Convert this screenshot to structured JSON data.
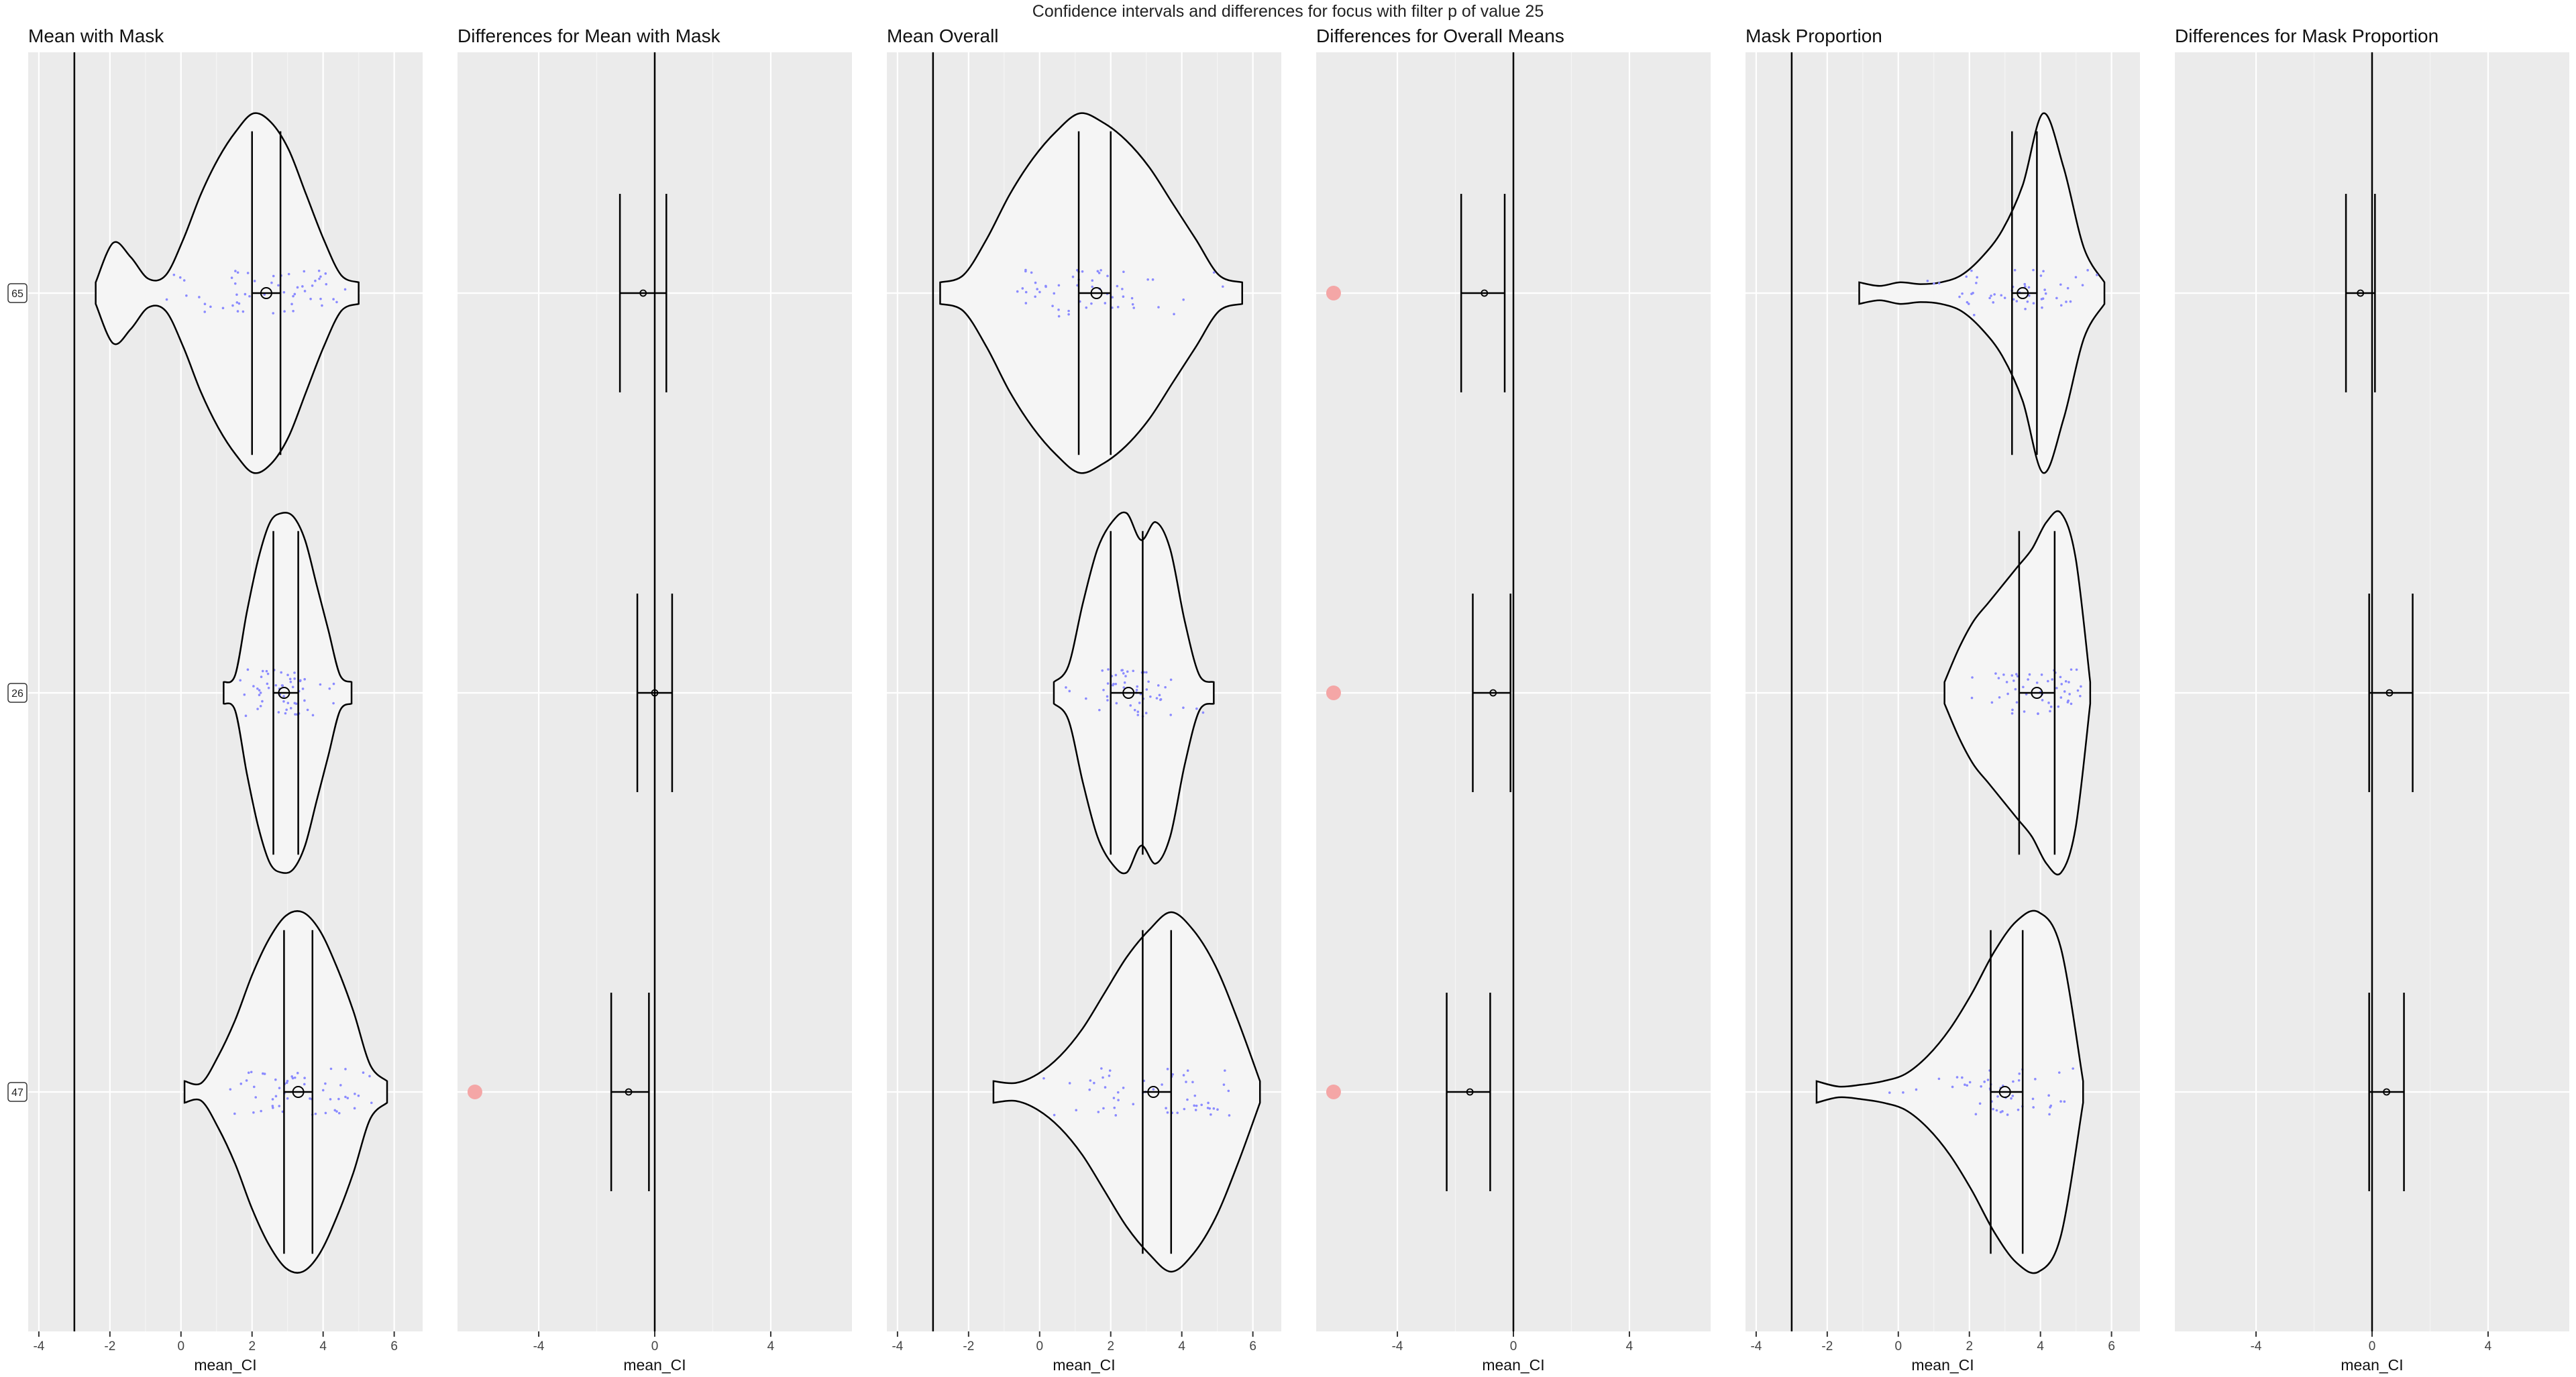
{
  "title": "Confidence intervals and differences for focus with filter p of value 25",
  "colors": {
    "panel_bg": "#ebebeb",
    "grid_major": "#ffffff",
    "violin_fill": "#f5f5f5",
    "line": "#000000",
    "jitter_points": "#8a8aff",
    "flag_point": "#f4a6a6"
  },
  "chart_data": [
    {
      "type": "violin",
      "title": "Mean with Mask",
      "xlabel": "mean_CI",
      "xlim": [
        -4.3,
        6.8
      ],
      "xticks": [
        -4,
        -2,
        0,
        2,
        4,
        6
      ],
      "reference_line": -3,
      "categories": [
        "65",
        "26",
        "47"
      ],
      "show_row_labels": true,
      "violins": [
        {
          "category": "65",
          "min": -2.4,
          "max": 5.0,
          "mean": 2.4,
          "ci": [
            2.0,
            2.8
          ],
          "profile": [
            0.28,
            0.2,
            0.08,
            0.1,
            0.3,
            0.55,
            0.75,
            0.9,
            1.0,
            0.95,
            0.8,
            0.55,
            0.3,
            0.1
          ]
        },
        {
          "category": "26",
          "min": 1.2,
          "max": 4.8,
          "mean": 2.9,
          "ci": [
            2.6,
            3.3
          ],
          "profile": [
            0.1,
            0.45,
            0.75,
            0.95,
            1.0,
            0.98,
            0.85,
            0.6,
            0.35,
            0.1
          ]
        },
        {
          "category": "47",
          "min": 0.1,
          "max": 5.8,
          "mean": 3.3,
          "ci": [
            2.9,
            3.7
          ],
          "profile": [
            0.05,
            0.2,
            0.4,
            0.65,
            0.85,
            0.98,
            1.0,
            0.9,
            0.7,
            0.45,
            0.15
          ]
        }
      ],
      "flag_points": []
    },
    {
      "type": "errorbar",
      "title": "Differences for Mean with Mask",
      "xlabel": "mean_CI",
      "xlim": [
        -6.8,
        6.8
      ],
      "xticks": [
        -4,
        0,
        4
      ],
      "reference_line": 0,
      "categories": [
        "65",
        "26",
        "47"
      ],
      "show_row_labels": false,
      "intervals": [
        {
          "category": "65",
          "center": -0.4,
          "lo": -1.2,
          "hi": 0.4
        },
        {
          "category": "26",
          "center": 0.0,
          "lo": -0.6,
          "hi": 0.6
        },
        {
          "category": "47",
          "center": -0.9,
          "lo": -1.5,
          "hi": -0.2
        }
      ],
      "flag_points": [
        {
          "category": "47",
          "x": -6.2
        }
      ]
    },
    {
      "type": "violin",
      "title": "Mean Overall",
      "xlabel": "mean_CI",
      "xlim": [
        -4.3,
        6.8
      ],
      "xticks": [
        -4,
        -2,
        0,
        2,
        4,
        6
      ],
      "reference_line": -3,
      "categories": [
        "65",
        "26",
        "47"
      ],
      "show_row_labels": false,
      "violins": [
        {
          "category": "65",
          "min": -2.8,
          "max": 5.7,
          "mean": 1.6,
          "ci": [
            1.1,
            2.0
          ],
          "profile": [
            0.1,
            0.3,
            0.55,
            0.75,
            0.9,
            1.0,
            0.95,
            0.85,
            0.7,
            0.5,
            0.3,
            0.1
          ]
        },
        {
          "category": "26",
          "min": 0.4,
          "max": 4.9,
          "mean": 2.5,
          "ci": [
            2.0,
            2.9
          ],
          "profile": [
            0.15,
            0.5,
            0.8,
            0.95,
            1.0,
            0.85,
            0.95,
            0.8,
            0.4,
            0.1
          ]
        },
        {
          "category": "47",
          "min": -1.3,
          "max": 6.2,
          "mean": 3.2,
          "ci": [
            2.9,
            3.7
          ],
          "profile": [
            0.05,
            0.1,
            0.2,
            0.35,
            0.55,
            0.75,
            0.9,
            1.0,
            0.9,
            0.7,
            0.4
          ]
        }
      ],
      "flag_points": []
    },
    {
      "type": "errorbar",
      "title": "Differences for Overall Means",
      "xlabel": "mean_CI",
      "xlim": [
        -6.8,
        6.8
      ],
      "xticks": [
        -4,
        0,
        4
      ],
      "reference_line": 0,
      "categories": [
        "65",
        "26",
        "47"
      ],
      "show_row_labels": false,
      "intervals": [
        {
          "category": "65",
          "center": -1.0,
          "lo": -1.8,
          "hi": -0.3
        },
        {
          "category": "26",
          "center": -0.7,
          "lo": -1.4,
          "hi": -0.1
        },
        {
          "category": "47",
          "center": -1.5,
          "lo": -2.3,
          "hi": -0.8
        }
      ],
      "flag_points": [
        {
          "category": "65",
          "x": -6.2
        },
        {
          "category": "26",
          "x": -6.2
        },
        {
          "category": "47",
          "x": -6.2
        }
      ]
    },
    {
      "type": "violin",
      "title": "Mask Proportion",
      "xlabel": "mean_CI",
      "xlim": [
        -4.3,
        6.8
      ],
      "xticks": [
        -4,
        -2,
        0,
        2,
        4,
        6
      ],
      "reference_line": -3,
      "categories": [
        "65",
        "26",
        "47"
      ],
      "show_row_labels": false,
      "violins": [
        {
          "category": "65",
          "min": -1.1,
          "max": 5.8,
          "mean": 3.5,
          "ci": [
            3.2,
            3.9
          ],
          "profile": [
            0.04,
            0.06,
            0.05,
            0.06,
            0.1,
            0.2,
            0.35,
            0.6,
            1.0,
            0.7,
            0.25
          ]
        },
        {
          "category": "26",
          "min": 1.3,
          "max": 5.4,
          "mean": 3.9,
          "ci": [
            3.4,
            4.4
          ],
          "profile": [
            0.25,
            0.4,
            0.5,
            0.6,
            0.7,
            0.8,
            0.95,
            1.0,
            0.75
          ]
        },
        {
          "category": "47",
          "min": -2.3,
          "max": 5.2,
          "mean": 3.0,
          "ci": [
            2.6,
            3.5
          ],
          "profile": [
            0.03,
            0.04,
            0.06,
            0.1,
            0.2,
            0.35,
            0.55,
            0.78,
            0.95,
            1.0,
            0.8
          ]
        }
      ],
      "flag_points": []
    },
    {
      "type": "errorbar",
      "title": "Differences for Mask Proportion",
      "xlabel": "mean_CI",
      "xlim": [
        -6.8,
        6.8
      ],
      "xticks": [
        -4,
        0,
        4
      ],
      "reference_line": 0,
      "categories": [
        "65",
        "26",
        "47"
      ],
      "show_row_labels": false,
      "intervals": [
        {
          "category": "65",
          "center": -0.4,
          "lo": -0.9,
          "hi": 0.1
        },
        {
          "category": "26",
          "center": 0.6,
          "lo": -0.1,
          "hi": 1.4
        },
        {
          "category": "47",
          "center": 0.5,
          "lo": -0.1,
          "hi": 1.1
        }
      ],
      "flag_points": []
    }
  ]
}
